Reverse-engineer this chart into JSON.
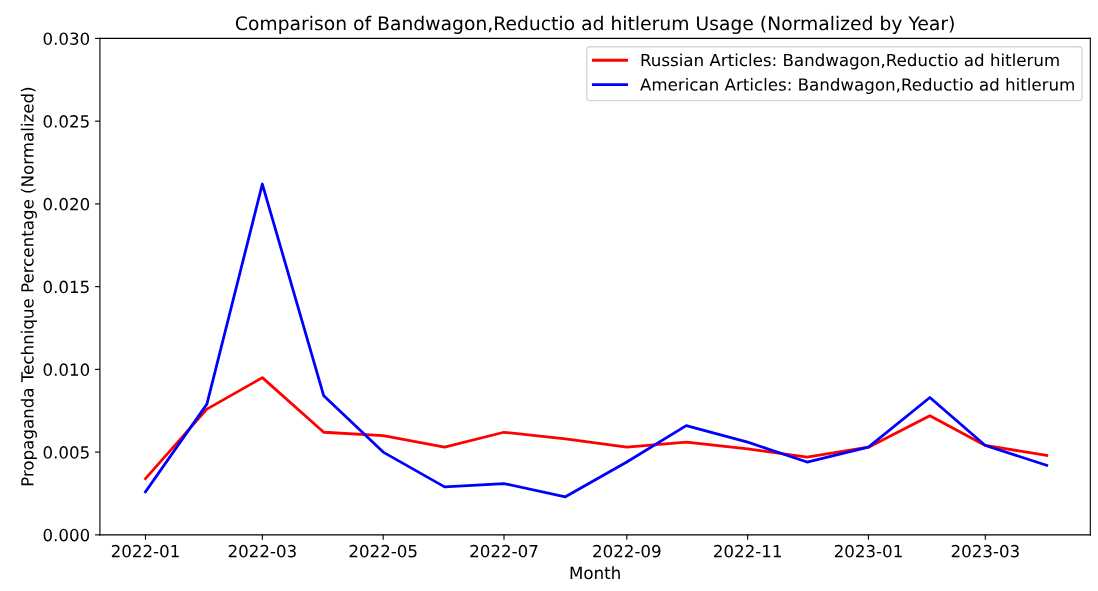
{
  "chart_data": {
    "type": "line",
    "title": "Comparison of Bandwagon,Reductio ad hitlerum Usage (Normalized by Year)",
    "xlabel": "Month",
    "ylabel": "Propaganda Technique Percentage (Normalized)",
    "x": [
      "2022-01",
      "2022-02",
      "2022-03",
      "2022-04",
      "2022-05",
      "2022-06",
      "2022-07",
      "2022-08",
      "2022-09",
      "2022-10",
      "2022-11",
      "2022-12",
      "2023-01",
      "2023-02",
      "2023-03",
      "2023-04"
    ],
    "series": [
      {
        "name": "Russian Articles: Bandwagon,Reductio ad hitlerum",
        "color": "#ff0000",
        "values": [
          0.0034,
          0.0076,
          0.0095,
          0.0062,
          0.006,
          0.0053,
          0.0062,
          0.0058,
          0.0053,
          0.0056,
          0.0052,
          0.0047,
          0.0053,
          0.0072,
          0.0054,
          0.0048
        ]
      },
      {
        "name": "American Articles: Bandwagon,Reductio ad hitlerum",
        "color": "#0000ff",
        "values": [
          0.0026,
          0.0079,
          0.0212,
          0.0084,
          0.005,
          0.0029,
          0.0031,
          0.0023,
          0.0044,
          0.0066,
          0.0056,
          0.0044,
          0.0053,
          0.0083,
          0.0054,
          0.0042
        ]
      }
    ],
    "xlim": [
      "2021-12-09",
      "2023-04-23"
    ],
    "xticks": [
      {
        "value": "2022-01",
        "label": "2022-01"
      },
      {
        "value": "2022-03",
        "label": "2022-03"
      },
      {
        "value": "2022-05",
        "label": "2022-05"
      },
      {
        "value": "2022-07",
        "label": "2022-07"
      },
      {
        "value": "2022-09",
        "label": "2022-09"
      },
      {
        "value": "2022-11",
        "label": "2022-11"
      },
      {
        "value": "2023-01",
        "label": "2023-01"
      },
      {
        "value": "2023-03",
        "label": "2023-03"
      }
    ],
    "ylim": [
      0.0,
      0.03
    ],
    "yticks": [
      {
        "value": 0.0,
        "label": "0.000"
      },
      {
        "value": 0.005,
        "label": "0.005"
      },
      {
        "value": 0.01,
        "label": "0.010"
      },
      {
        "value": 0.015,
        "label": "0.015"
      },
      {
        "value": 0.02,
        "label": "0.020"
      },
      {
        "value": 0.025,
        "label": "0.025"
      },
      {
        "value": 0.03,
        "label": "0.030"
      }
    ],
    "legend": "top right",
    "line_style": "solid"
  }
}
